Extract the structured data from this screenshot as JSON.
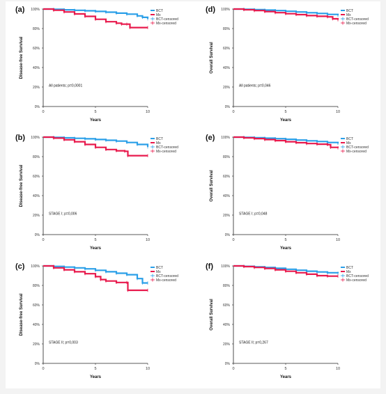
{
  "figure": {
    "colors": {
      "bct": "#2a9fe8",
      "mx": "#e8194c",
      "axis": "#222222",
      "text": "#111111"
    },
    "panels": [
      {
        "panel_label": "(a)",
        "ylabel": "Disease-free Survival",
        "xlabel": "Years",
        "annotation": "All patients; p=0,0001",
        "legend": [
          "BCT",
          "Mx",
          "BCT-censored",
          "Mx-censored"
        ]
      },
      {
        "panel_label": "(d)",
        "ylabel": "Overall Survival",
        "xlabel": "Years",
        "annotation": "All patients; p=0,046",
        "legend": [
          "BCT",
          "Mx",
          "BCT-censored",
          "Mx-censored"
        ]
      },
      {
        "panel_label": "(b)",
        "ylabel": "Disease-free Survival",
        "xlabel": "Years",
        "annotation": "STAGE I; p=0,006",
        "legend": [
          "BCT",
          "Mx",
          "BCT-censored",
          "Mx-censored"
        ]
      },
      {
        "panel_label": "(e)",
        "ylabel": "Overall Survival",
        "xlabel": "Years",
        "annotation": "STAGE I; p=0,048",
        "legend": [
          "BCT",
          "Mx",
          "BCT-censored",
          "Mx-censored"
        ]
      },
      {
        "panel_label": "(c)",
        "ylabel": "Disease-free Survival",
        "xlabel": "Years",
        "annotation": "STAGE II; p=0,003",
        "legend": [
          "BCT",
          "Mx",
          "BCT-censored",
          "Mx-censored"
        ]
      },
      {
        "panel_label": "(f)",
        "ylabel": "Overall Survival",
        "xlabel": "Years",
        "annotation": "STAGE II; p=0,267",
        "legend": [
          "BCT",
          "Mx",
          "BCT-censored",
          "Mx-censored"
        ]
      }
    ]
  },
  "chart_data": [
    {
      "type": "line",
      "title": "(a)",
      "xlabel": "Years",
      "ylabel": "Disease-free Survival",
      "xlim": [
        0,
        10
      ],
      "ylim": [
        0,
        100
      ],
      "xticks": [
        "0",
        "5",
        "10"
      ],
      "yticks": [
        "0%",
        "20%",
        "40%",
        "60%",
        "80%",
        "100%"
      ],
      "legend_position": "top-right",
      "annotation": "All patients; p=0,0001",
      "series": [
        {
          "name": "BCT",
          "x": [
            0,
            1,
            2,
            3,
            4,
            5,
            6,
            7,
            8,
            9,
            9.5,
            10
          ],
          "y": [
            100,
            99.7,
            99.2,
            98.7,
            98.2,
            97.6,
            96.8,
            95.8,
            94.8,
            93,
            91.5,
            90
          ]
        },
        {
          "name": "Mx",
          "x": [
            0,
            1,
            2,
            3,
            4,
            5,
            6,
            7,
            7.5,
            8,
            8.3,
            10
          ],
          "y": [
            100,
            98.8,
            97,
            95,
            92.5,
            89.5,
            87,
            85.5,
            84.5,
            84.5,
            81,
            81
          ]
        }
      ]
    },
    {
      "type": "line",
      "title": "(d)",
      "xlabel": "Years",
      "ylabel": "Overall Survival",
      "xlim": [
        0,
        10
      ],
      "ylim": [
        0,
        100
      ],
      "xticks": [
        "0",
        "5",
        "10"
      ],
      "yticks": [
        "0%",
        "20%",
        "40%",
        "60%",
        "80%",
        "100%"
      ],
      "legend_position": "top-right",
      "annotation": "All patients; p=0,046",
      "series": [
        {
          "name": "BCT",
          "x": [
            0,
            1,
            2,
            3,
            4,
            5,
            6,
            7,
            8,
            9,
            10
          ],
          "y": [
            100,
            99.8,
            99.4,
            98.9,
            98.4,
            97.7,
            97,
            96.2,
            95.5,
            94.5,
            93.5
          ]
        },
        {
          "name": "Mx",
          "x": [
            0,
            1,
            2,
            3,
            4,
            5,
            6,
            7,
            8,
            9,
            9.5,
            10
          ],
          "y": [
            100,
            99.3,
            98.4,
            97.4,
            96.3,
            95.2,
            94.3,
            93.3,
            92.6,
            92,
            90,
            89
          ]
        }
      ]
    },
    {
      "type": "line",
      "title": "(b)",
      "xlabel": "Years",
      "ylabel": "Disease-free Survival",
      "xlim": [
        0,
        10
      ],
      "ylim": [
        0,
        100
      ],
      "xticks": [
        "0",
        "5",
        "10"
      ],
      "yticks": [
        "0%",
        "20%",
        "40%",
        "60%",
        "80%",
        "100%"
      ],
      "legend_position": "top-right",
      "annotation": "STAGE I; p=0,006",
      "series": [
        {
          "name": "BCT",
          "x": [
            0,
            1,
            2,
            3,
            4,
            5,
            6,
            7,
            8,
            9,
            10
          ],
          "y": [
            100,
            99.8,
            99.3,
            98.8,
            98.3,
            97.6,
            96.8,
            95.9,
            94.5,
            92.5,
            90
          ]
        },
        {
          "name": "Mx",
          "x": [
            0,
            1,
            2,
            3,
            4,
            5,
            6,
            7,
            7.8,
            8.1,
            10
          ],
          "y": [
            100,
            99,
            97.3,
            95.3,
            92.5,
            89.5,
            87.3,
            86,
            85.5,
            81,
            81
          ]
        }
      ]
    },
    {
      "type": "line",
      "title": "(e)",
      "xlabel": "Years",
      "ylabel": "Overall Survival",
      "xlim": [
        0,
        10
      ],
      "ylim": [
        0,
        100
      ],
      "xticks": [
        "0",
        "5",
        "10"
      ],
      "yticks": [
        "0%",
        "20%",
        "40%",
        "60%",
        "80%",
        "100%"
      ],
      "legend_position": "top-right",
      "annotation": "STAGE I; p=0,048",
      "series": [
        {
          "name": "BCT",
          "x": [
            0,
            1,
            2,
            3,
            4,
            5,
            6,
            7,
            8,
            9,
            10
          ],
          "y": [
            100,
            99.8,
            99.4,
            98.9,
            98.4,
            97.8,
            97,
            96.2,
            95.5,
            94.5,
            93.5
          ]
        },
        {
          "name": "Mx",
          "x": [
            0,
            1,
            2,
            3,
            4,
            5,
            6,
            7,
            8,
            9,
            9.3,
            10
          ],
          "y": [
            100,
            99.3,
            98.5,
            97.5,
            96.4,
            95.3,
            94.3,
            93.4,
            92.8,
            92.3,
            89.5,
            89
          ]
        }
      ]
    },
    {
      "type": "line",
      "title": "(c)",
      "xlabel": "Years",
      "ylabel": "Disease-free Survival",
      "xlim": [
        0,
        10
      ],
      "ylim": [
        0,
        100
      ],
      "xticks": [
        "0",
        "5",
        "10"
      ],
      "yticks": [
        "0%",
        "20%",
        "40%",
        "60%",
        "80%",
        "100%"
      ],
      "legend_position": "top-right",
      "annotation": "STAGE II; p=0,003",
      "series": [
        {
          "name": "BCT",
          "x": [
            0,
            1,
            2,
            3,
            4,
            5,
            6,
            7,
            8,
            9,
            9.5,
            10
          ],
          "y": [
            100,
            99.5,
            98.8,
            98,
            97,
            95.5,
            94,
            92.5,
            91,
            87,
            82.5,
            82.5
          ]
        },
        {
          "name": "Mx",
          "x": [
            0,
            1,
            2,
            3,
            4,
            5,
            5.5,
            6,
            7,
            8,
            8.1,
            10
          ],
          "y": [
            100,
            98,
            96,
            94,
            92,
            89,
            86,
            84.5,
            83,
            83,
            75,
            75
          ]
        }
      ]
    },
    {
      "type": "line",
      "title": "(f)",
      "xlabel": "Years",
      "ylabel": "Overall Survival",
      "xlim": [
        0,
        10
      ],
      "ylim": [
        0,
        100
      ],
      "xticks": [
        "0",
        "5",
        "10"
      ],
      "yticks": [
        "0%",
        "20%",
        "40%",
        "60%",
        "80%",
        "100%"
      ],
      "legend_position": "top-right",
      "annotation": "STAGE II; p=0,267",
      "series": [
        {
          "name": "BCT",
          "x": [
            0,
            1,
            2,
            3,
            4,
            5,
            6,
            7,
            8,
            9,
            10
          ],
          "y": [
            100,
            99.6,
            99,
            98.4,
            97.6,
            96.6,
            95.6,
            94.6,
            93.8,
            93,
            92.5
          ]
        },
        {
          "name": "Mx",
          "x": [
            0,
            1,
            2,
            3,
            4,
            5,
            6,
            7,
            8,
            9,
            10
          ],
          "y": [
            100,
            99.3,
            98.4,
            97.4,
            96,
            94.5,
            93,
            91.5,
            90,
            89.5,
            89.5
          ]
        }
      ]
    }
  ]
}
